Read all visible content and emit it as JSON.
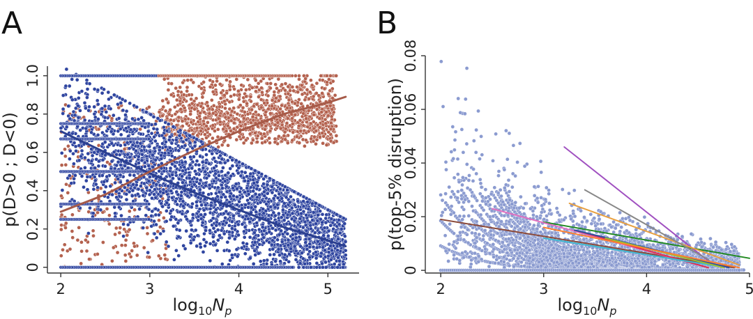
{
  "chart_data": [
    {
      "panel": "A",
      "type": "scatter",
      "xlabel_base": "log",
      "xlabel_sub": "10",
      "xlabel_var": "N",
      "xlabel_var_sub": "p",
      "ylabel": "p(D>0 ; D<0)",
      "xlim": [
        1.85,
        5.35
      ],
      "ylim": [
        -0.03,
        1.05
      ],
      "xticks": [
        "2",
        "3",
        "4",
        "5"
      ],
      "yticks": [
        "0",
        "0.2",
        "0.4",
        "0.6",
        "0.8",
        "1.0"
      ],
      "series": [
        {
          "color": "#2b3f8f",
          "point_color": "#2f45a0",
          "description_of_cloud": "dense cloud of points between x=2 and x=5.2, mostly y 0 to 0.9, upper boundary declining from ~1.0 at x=2 to ~0.3 at x=5",
          "fit": {
            "x": [
              2.0,
              2.5,
              3.0,
              3.5,
              4.0,
              4.5,
              5.0,
              5.2
            ],
            "y": [
              0.71,
              0.6,
              0.49,
              0.39,
              0.3,
              0.21,
              0.14,
              0.11
            ]
          }
        },
        {
          "color": "#a65a48",
          "point_color": "#b4624f",
          "description_of_cloud": "points concentrated at upper right (x 3 to 5, y 0.6 to 1.0) plus sparse scatter elsewhere",
          "fit": {
            "x": [
              2.0,
              2.5,
              3.0,
              3.5,
              4.0,
              4.5,
              5.0,
              5.2
            ],
            "y": [
              0.29,
              0.38,
              0.5,
              0.61,
              0.71,
              0.8,
              0.86,
              0.89
            ]
          }
        }
      ]
    },
    {
      "panel": "B",
      "type": "scatter",
      "xlabel_base": "log",
      "xlabel_sub": "10",
      "xlabel_var": "N",
      "xlabel_var_sub": "p",
      "ylabel": "p(top-5% disruption)",
      "xlim": [
        1.85,
        5.0
      ],
      "ylim": [
        -0.001,
        0.08
      ],
      "xticks": [
        "2",
        "3",
        "4",
        "5"
      ],
      "yticks": [
        "0",
        "0.02",
        "0.04",
        "0.06",
        "0.08"
      ],
      "points_color": "#8b9bd0",
      "fit_lines": [
        {
          "color": "#8b4a3a",
          "x": [
            2.0,
            4.85
          ],
          "y": [
            0.019,
            0.001
          ]
        },
        {
          "color": "#a050c0",
          "x": [
            3.2,
            4.65
          ],
          "y": [
            0.046,
            0.002
          ]
        },
        {
          "color": "#228a22",
          "x": [
            3.0,
            5.0
          ],
          "y": [
            0.018,
            0.0045
          ]
        },
        {
          "color": "#e8a040",
          "x": [
            3.25,
            4.9
          ],
          "y": [
            0.025,
            0.002
          ]
        },
        {
          "color": "#888888",
          "x": [
            3.4,
            4.6
          ],
          "y": [
            0.03,
            0.004
          ]
        },
        {
          "color": "#e070c0",
          "x": [
            2.5,
            4.55
          ],
          "y": [
            0.023,
            0.0015
          ]
        },
        {
          "color": "#e03050",
          "x": [
            3.3,
            4.6
          ],
          "y": [
            0.015,
            0.001
          ]
        },
        {
          "color": "#40b8d0",
          "x": [
            3.0,
            4.7
          ],
          "y": [
            0.012,
            0.0015
          ]
        },
        {
          "color": "#3050a0",
          "x": [
            3.3,
            4.8
          ],
          "y": [
            0.015,
            0.001
          ]
        },
        {
          "color": "#a0c030",
          "x": [
            3.6,
            4.75
          ],
          "y": [
            0.012,
            0.001
          ]
        },
        {
          "color": "#ff8030",
          "x": [
            3.0,
            4.9
          ],
          "y": [
            0.016,
            0.001
          ]
        }
      ]
    }
  ],
  "labels": {
    "panel_a": "A",
    "panel_b": "B"
  }
}
